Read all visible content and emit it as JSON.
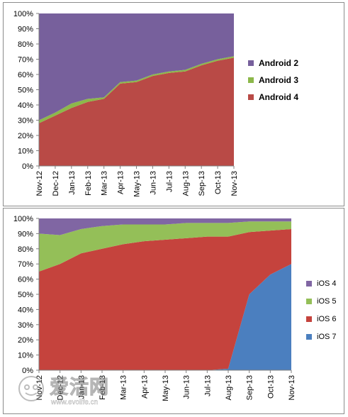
{
  "colors": {
    "android_2": "#77609c",
    "android_3": "#8cb84a",
    "android_4": "#b94a46",
    "ios_4": "#8066a3",
    "ios_5": "#94bf58",
    "ios_6": "#c5433d",
    "ios_7": "#4b7fbf"
  },
  "chart_data": [
    {
      "type": "area",
      "stacked": true,
      "categories": [
        "Nov-12",
        "Dec-12",
        "Jan-13",
        "Feb-13",
        "Mar-13",
        "Apr-13",
        "May-13",
        "Jun-13",
        "Jul-13",
        "Aug-13",
        "Sep-13",
        "Oct-13",
        "Nov-13"
      ],
      "series": [
        {
          "name": "Android 4",
          "values": [
            28,
            33,
            38,
            42,
            44,
            54,
            55,
            59,
            61,
            62,
            66,
            69,
            71
          ]
        },
        {
          "name": "Android 3",
          "values": [
            2,
            2,
            3,
            2,
            1,
            1,
            1,
            1,
            1,
            1,
            1,
            1,
            1
          ]
        },
        {
          "name": "Android 2",
          "values": [
            70,
            65,
            59,
            56,
            55,
            45,
            44,
            40,
            38,
            37,
            33,
            30,
            28
          ]
        }
      ],
      "legend_order": [
        "Android 2",
        "Android 3",
        "Android 4"
      ],
      "ylim": [
        0,
        100
      ],
      "y_ticks": [
        "0%",
        "10%",
        "20%",
        "30%",
        "40%",
        "50%",
        "60%",
        "70%",
        "80%",
        "90%",
        "100%"
      ],
      "legend_position": "right",
      "grid": false
    },
    {
      "type": "area",
      "stacked": true,
      "categories": [
        "Nov-12",
        "Dec-12",
        "Jan-13",
        "Feb-13",
        "Mar-13",
        "Apr-13",
        "May-13",
        "Jun-13",
        "Jul-13",
        "Aug-13",
        "Sep-13",
        "Oct-13",
        "Nov-13"
      ],
      "series": [
        {
          "name": "iOS 7",
          "values": [
            0,
            0,
            0,
            0,
            0,
            0,
            0,
            0,
            0,
            1,
            50,
            63,
            70
          ]
        },
        {
          "name": "iOS 6",
          "values": [
            65,
            70,
            77,
            80,
            83,
            85,
            86,
            87,
            88,
            87,
            41,
            29,
            23
          ]
        },
        {
          "name": "iOS 5",
          "values": [
            25,
            19,
            16,
            15,
            13,
            11,
            10,
            10,
            9,
            9,
            7,
            6,
            5
          ]
        },
        {
          "name": "iOS 4",
          "values": [
            10,
            11,
            7,
            5,
            4,
            4,
            4,
            3,
            3,
            3,
            2,
            2,
            2
          ]
        }
      ],
      "legend_order": [
        "iOS 4",
        "iOS 5",
        "iOS 6",
        "iOS 7"
      ],
      "ylim": [
        0,
        100
      ],
      "y_ticks": [
        "0%",
        "10%",
        "20%",
        "30%",
        "40%",
        "50%",
        "60%",
        "70%",
        "80%",
        "90%",
        "100%"
      ],
      "legend_position": "right",
      "grid": false
    }
  ],
  "watermark": {
    "title": "爱活网",
    "url": "www.evolife.cn"
  }
}
